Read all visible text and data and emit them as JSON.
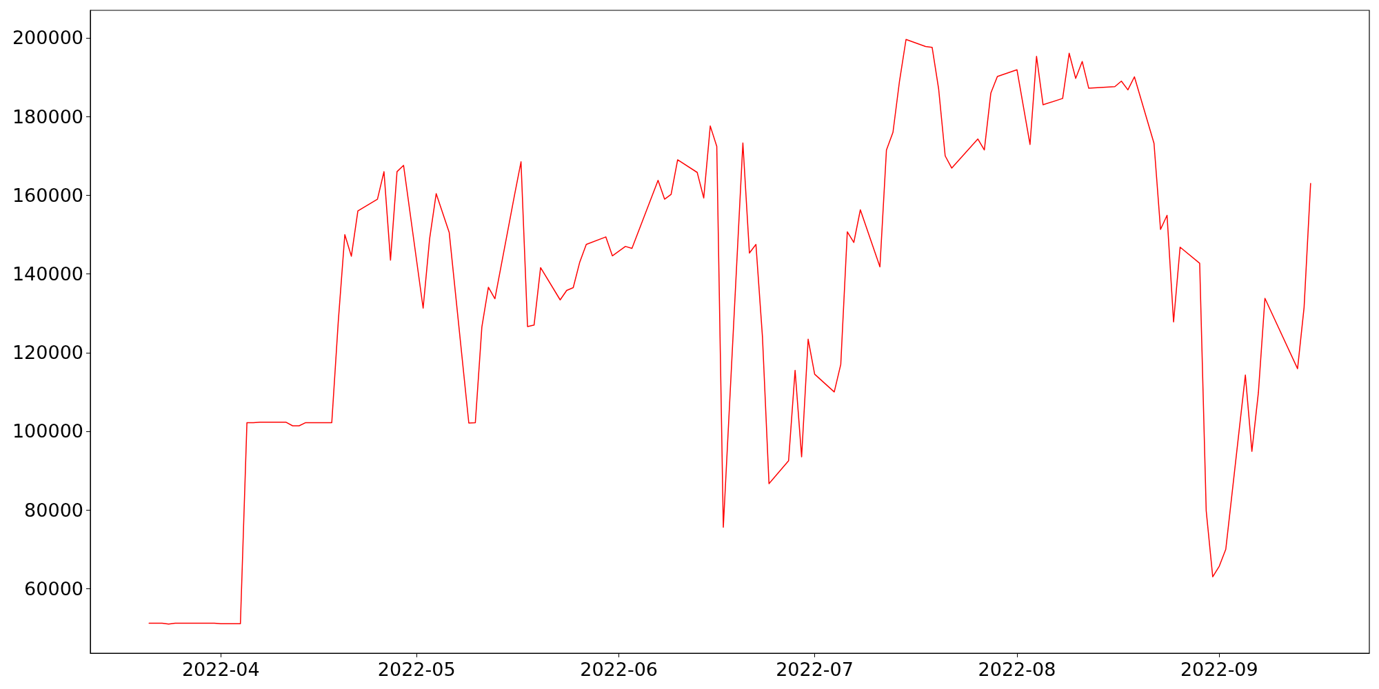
{
  "chart_data": {
    "type": "line",
    "x": [
      "2022-03-21",
      "2022-03-22",
      "2022-03-23",
      "2022-03-24",
      "2022-03-25",
      "2022-03-28",
      "2022-03-29",
      "2022-03-30",
      "2022-03-31",
      "2022-04-01",
      "2022-04-04",
      "2022-04-05",
      "2022-04-06",
      "2022-04-07",
      "2022-04-08",
      "2022-04-11",
      "2022-04-12",
      "2022-04-13",
      "2022-04-14",
      "2022-04-15",
      "2022-04-18",
      "2022-04-19",
      "2022-04-20",
      "2022-04-21",
      "2022-04-22",
      "2022-04-25",
      "2022-04-26",
      "2022-04-27",
      "2022-04-28",
      "2022-04-29",
      "2022-05-02",
      "2022-05-03",
      "2022-05-04",
      "2022-05-06",
      "2022-05-09",
      "2022-05-10",
      "2022-05-11",
      "2022-05-12",
      "2022-05-13",
      "2022-05-16",
      "2022-05-17",
      "2022-05-18",
      "2022-05-19",
      "2022-05-20",
      "2022-05-23",
      "2022-05-24",
      "2022-05-25",
      "2022-05-26",
      "2022-05-27",
      "2022-05-30",
      "2022-05-31",
      "2022-06-02",
      "2022-06-03",
      "2022-06-07",
      "2022-06-08",
      "2022-06-09",
      "2022-06-10",
      "2022-06-13",
      "2022-06-14",
      "2022-06-15",
      "2022-06-16",
      "2022-06-17",
      "2022-06-20",
      "2022-06-21",
      "2022-06-22",
      "2022-06-23",
      "2022-06-24",
      "2022-06-27",
      "2022-06-28",
      "2022-06-29",
      "2022-06-30",
      "2022-07-01",
      "2022-07-04",
      "2022-07-05",
      "2022-07-06",
      "2022-07-07",
      "2022-07-08",
      "2022-07-11",
      "2022-07-12",
      "2022-07-13",
      "2022-07-14",
      "2022-07-15",
      "2022-07-18",
      "2022-07-19",
      "2022-07-20",
      "2022-07-21",
      "2022-07-22",
      "2022-07-26",
      "2022-07-27",
      "2022-07-28",
      "2022-07-29",
      "2022-08-01",
      "2022-08-03",
      "2022-08-04",
      "2022-08-05",
      "2022-08-08",
      "2022-08-09",
      "2022-08-10",
      "2022-08-11",
      "2022-08-12",
      "2022-08-16",
      "2022-08-17",
      "2022-08-18",
      "2022-08-19",
      "2022-08-22",
      "2022-08-23",
      "2022-08-24",
      "2022-08-25",
      "2022-08-26",
      "2022-08-29",
      "2022-08-30",
      "2022-08-31",
      "2022-09-01",
      "2022-09-02",
      "2022-09-05",
      "2022-09-06",
      "2022-09-07",
      "2022-09-08",
      "2022-09-13",
      "2022-09-14",
      "2022-09-15"
    ],
    "series": [
      {
        "color": "#ff0000",
        "values": [
          51200,
          51200,
          51200,
          51000,
          51200,
          51200,
          51200,
          51200,
          51200,
          51100,
          51100,
          102200,
          102200,
          102300,
          102300,
          102300,
          101400,
          101400,
          102200,
          102200,
          102200,
          128000,
          150000,
          144500,
          156000,
          159000,
          166000,
          143500,
          166000,
          167600,
          131300,
          149000,
          160400,
          150500,
          102100,
          102200,
          126500,
          136600,
          133700,
          160000,
          168500,
          126600,
          127000,
          141600,
          133400,
          135800,
          136500,
          143000,
          147500,
          149400,
          144600,
          147000,
          146500,
          163800,
          159000,
          160200,
          169000,
          165800,
          159300,
          177600,
          172400,
          75600,
          173300,
          145300,
          147500,
          124000,
          86700,
          92500,
          115500,
          93500,
          123400,
          114500,
          110000,
          117000,
          150700,
          148000,
          156300,
          141800,
          171500,
          176000,
          189000,
          199600,
          197800,
          197600,
          187000,
          170000,
          166900,
          174300,
          171500,
          186000,
          190200,
          191900,
          172900,
          195300,
          183000,
          184600,
          196100,
          189700,
          194000,
          187200,
          187600,
          189000,
          186800,
          190100,
          173200,
          151300,
          154900,
          127800,
          146800,
          142700,
          79800,
          63000,
          65700,
          70000,
          114300,
          94900,
          109900,
          133800,
          115900,
          131500,
          163000
        ]
      }
    ],
    "xlim": [
      "2022-03-12",
      "2022-09-24"
    ],
    "xticks": [
      "2022-04",
      "2022-05",
      "2022-06",
      "2022-07",
      "2022-08",
      "2022-09"
    ],
    "ylim": [
      43600,
      207000
    ],
    "yticks": [
      60000,
      80000,
      100000,
      120000,
      140000,
      160000,
      180000,
      200000
    ],
    "marker": "none",
    "line_style": "solid",
    "grid": false
  }
}
